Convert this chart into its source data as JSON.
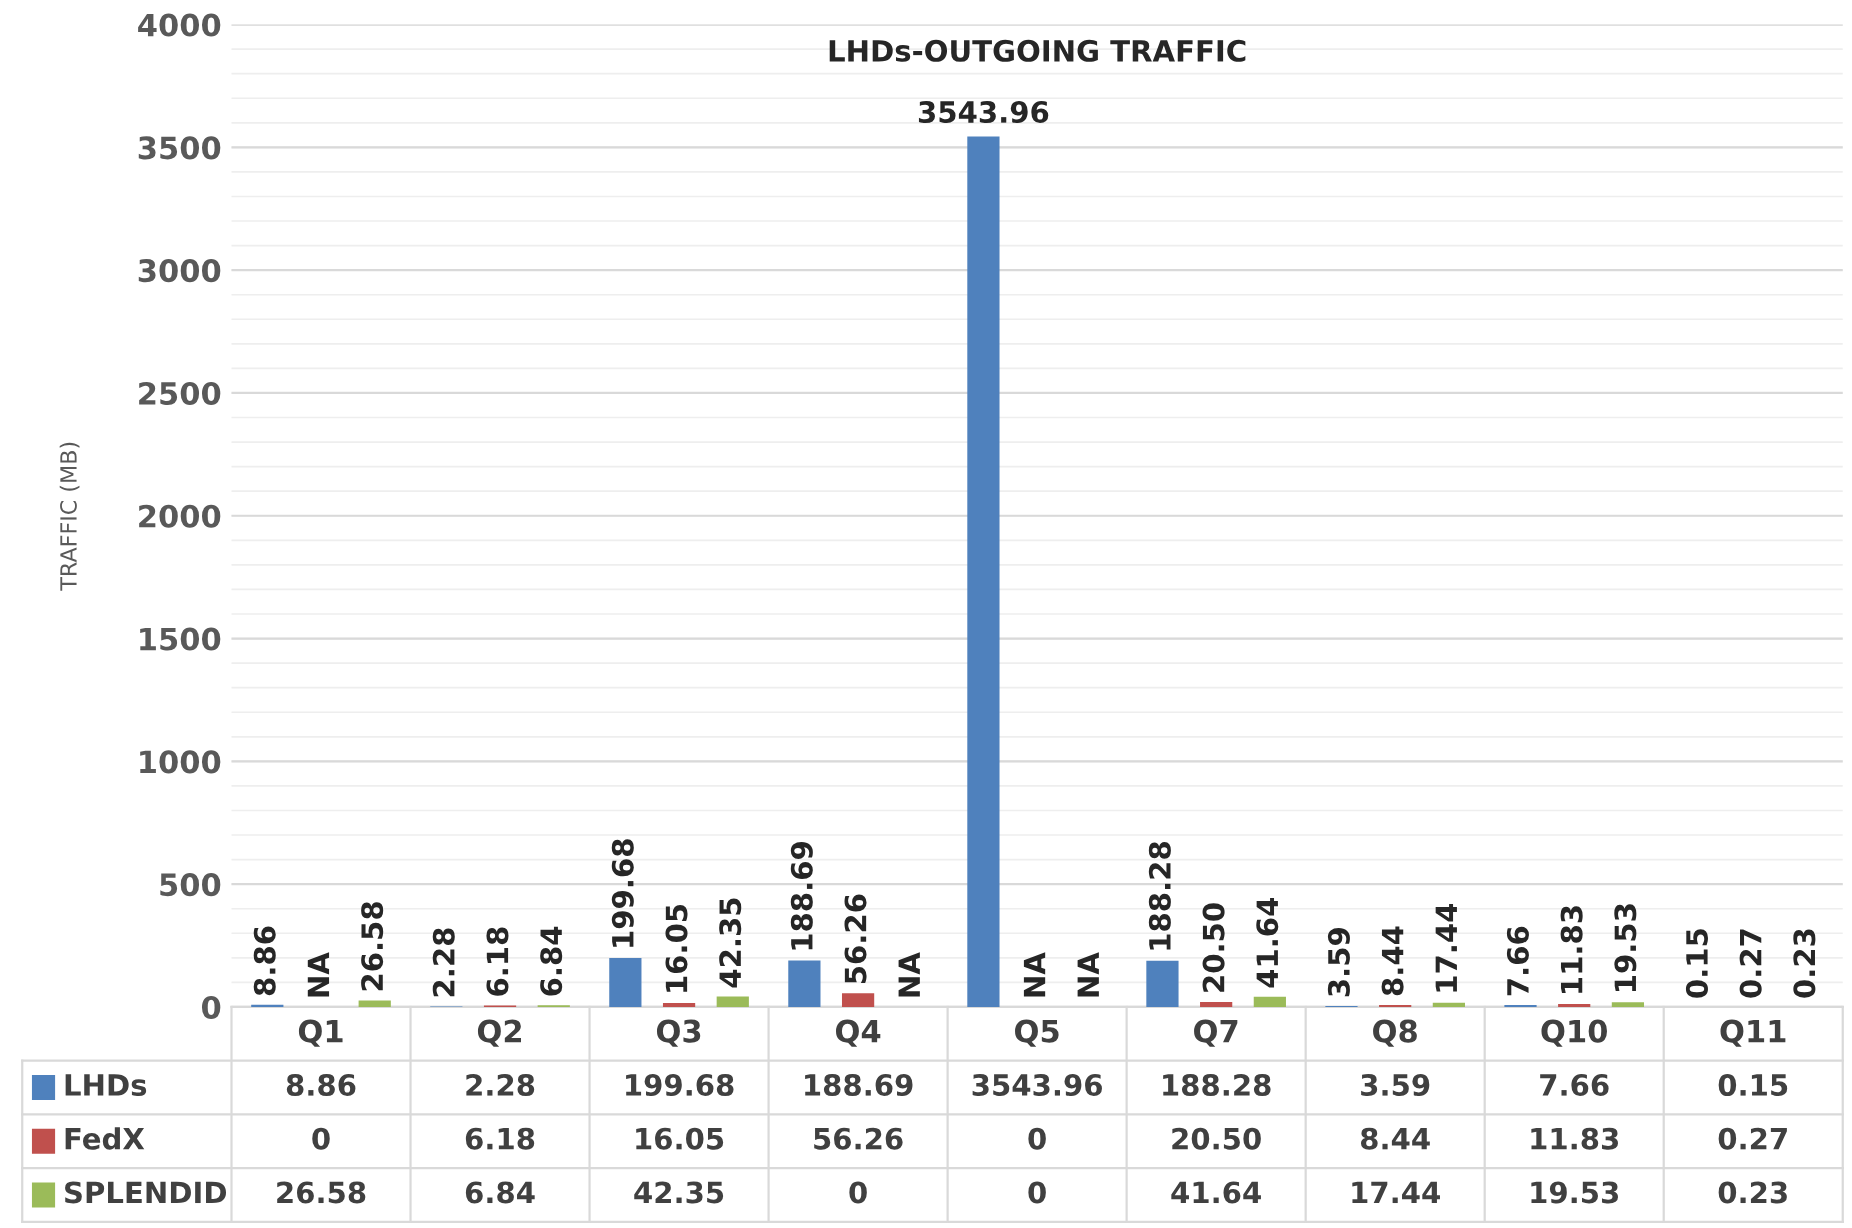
{
  "chart_data": {
    "type": "bar",
    "title": "LHDs-OUTGOING TRAFFIC",
    "ylabel": "TRAFFIC (MB)",
    "categories": [
      "Q1",
      "Q2",
      "Q3",
      "Q4",
      "Q5",
      "Q7",
      "Q8",
      "Q10",
      "Q11"
    ],
    "series": [
      {
        "name": "LHDs",
        "color": "#4f81bd",
        "values": [
          8.86,
          2.28,
          199.68,
          188.69,
          3543.96,
          188.28,
          3.59,
          7.66,
          0.15
        ],
        "value_labels": [
          "8.86",
          "2.28",
          "199.68",
          "188.69",
          "3543.96",
          "188.28",
          "3.59",
          "7.66",
          "0.15"
        ]
      },
      {
        "name": "FedX",
        "color": "#c0504d",
        "values": [
          0,
          6.18,
          16.05,
          56.26,
          0,
          20.5,
          8.44,
          11.83,
          0.27
        ],
        "value_labels": [
          "0",
          "6.18",
          "16.05",
          "56.26",
          "0",
          "20.50",
          "8.44",
          "11.83",
          "0.27"
        ]
      },
      {
        "name": "SPLENDID",
        "color": "#9bbb59",
        "values": [
          26.58,
          6.84,
          42.35,
          0,
          0,
          41.64,
          17.44,
          19.53,
          0.23
        ],
        "value_labels": [
          "26.58",
          "6.84",
          "42.35",
          "0",
          "0",
          "41.64",
          "17.44",
          "19.53",
          "0.23"
        ]
      }
    ],
    "annotations": [
      {
        "text": "NA",
        "x": "Q1",
        "y": 0
      },
      {
        "text": "NA",
        "x": "Q4",
        "y": 0
      },
      {
        "text": "NA",
        "x": "Q5",
        "y": 0
      },
      {
        "text": "NA",
        "x": "Q5",
        "y": 0
      }
    ],
    "ylim": [
      0,
      4000
    ],
    "yticks": [
      0,
      500,
      1000,
      1500,
      2000,
      2500,
      3000,
      3500,
      4000
    ],
    "grid": "y",
    "legend": "bottom"
  }
}
